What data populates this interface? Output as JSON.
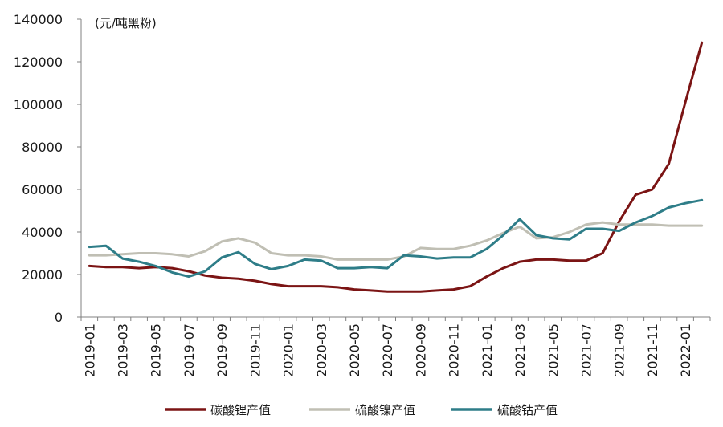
{
  "chart_data": {
    "type": "line",
    "unit": "(元/吨黑粉)",
    "ylim": [
      0,
      140000
    ],
    "yticks": [
      0,
      20000,
      40000,
      60000,
      80000,
      100000,
      120000,
      140000
    ],
    "x": [
      "2019-01",
      "2019-02",
      "2019-03",
      "2019-04",
      "2019-05",
      "2019-06",
      "2019-07",
      "2019-08",
      "2019-09",
      "2019-10",
      "2019-11",
      "2019-12",
      "2020-01",
      "2020-02",
      "2020-03",
      "2020-04",
      "2020-05",
      "2020-06",
      "2020-07",
      "2020-08",
      "2020-09",
      "2020-10",
      "2020-11",
      "2020-12",
      "2021-01",
      "2021-02",
      "2021-03",
      "2021-04",
      "2021-05",
      "2021-06",
      "2021-07",
      "2021-08",
      "2021-09",
      "2021-10",
      "2021-11",
      "2021-12",
      "2022-01",
      "2022-02"
    ],
    "xtick_labels": [
      "2019-01",
      "2019-03",
      "2019-05",
      "2019-07",
      "2019-09",
      "2019-11",
      "2020-01",
      "2020-03",
      "2020-05",
      "2020-07",
      "2020-09",
      "2020-11",
      "2021-01",
      "2021-03",
      "2021-05",
      "2021-07",
      "2021-09",
      "2021-11",
      "2022-01"
    ],
    "series": [
      {
        "name": "碳酸锂产值",
        "color": "#7b1414",
        "values": [
          24000,
          23500,
          23500,
          23000,
          23500,
          23000,
          21500,
          19500,
          18500,
          18000,
          17000,
          15500,
          14500,
          14500,
          14500,
          14000,
          13000,
          12500,
          12000,
          12000,
          12000,
          12500,
          13000,
          14500,
          19000,
          23000,
          26000,
          27000,
          27000,
          26500,
          26500,
          30000,
          45000,
          57500,
          60000,
          72000,
          101000,
          129000
        ]
      },
      {
        "name": "硫酸镍产值",
        "color": "#c0bfb4",
        "values": [
          29000,
          29000,
          29500,
          30000,
          30000,
          29500,
          28500,
          31000,
          35500,
          37000,
          35000,
          30000,
          29000,
          29000,
          28500,
          27000,
          27000,
          27000,
          27000,
          28500,
          32500,
          32000,
          32000,
          33500,
          36000,
          39500,
          42500,
          37000,
          37500,
          40000,
          43500,
          44500,
          43500,
          43500,
          43500,
          43000,
          43000,
          43000
        ]
      },
      {
        "name": "硫酸钴产值",
        "color": "#2e7d88",
        "values": [
          33000,
          33500,
          27500,
          26000,
          24000,
          21000,
          19000,
          21500,
          28000,
          30500,
          25000,
          22500,
          24000,
          27000,
          26500,
          23000,
          23000,
          23500,
          23000,
          29000,
          28500,
          27500,
          28000,
          28000,
          32000,
          38500,
          46000,
          38500,
          37000,
          36500,
          41500,
          41500,
          40500,
          44500,
          47500,
          51500,
          53500,
          55000
        ]
      }
    ]
  }
}
